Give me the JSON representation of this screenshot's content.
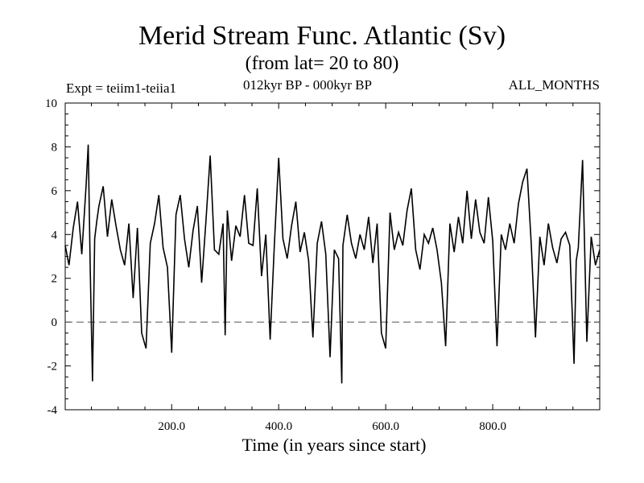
{
  "chart_data": {
    "type": "line",
    "title": "Merid Stream Func. Atlantic (Sv)",
    "subtitle": "(from lat= 20 to 80)",
    "annotations": {
      "left": "Expt = teiim1-teiia1",
      "center": "012kyr BP - 000kyr BP",
      "right": "ALL_MONTHS"
    },
    "xlabel": "Time (in years since start)",
    "ylabel": "",
    "xlim": [
      1,
      1000
    ],
    "ylim": [
      -4,
      10
    ],
    "xticks": [
      200,
      400,
      600,
      800
    ],
    "xtick_labels": [
      "200.0",
      "400.0",
      "600.0",
      "800.0"
    ],
    "yticks": [
      -4,
      -2,
      0,
      2,
      4,
      6,
      8,
      10
    ],
    "ytick_labels": [
      "-4",
      "-2",
      "0",
      "2",
      "4",
      "6",
      "8",
      "10"
    ],
    "reference_line": {
      "y": 0,
      "style": "dashed"
    },
    "series": [
      {
        "x": [
          1,
          8,
          16,
          24,
          32,
          40,
          44,
          48,
          52,
          56,
          60,
          64,
          72,
          80,
          88,
          96,
          104,
          112,
          120,
          128,
          136,
          144,
          152,
          160,
          168,
          176,
          184,
          192,
          200,
          208,
          216,
          224,
          232,
          240,
          248,
          256,
          264,
          272,
          280,
          288,
          296,
          300,
          304,
          312,
          320,
          328,
          336,
          344,
          352,
          360,
          368,
          376,
          384,
          392,
          400,
          408,
          416,
          424,
          432,
          440,
          448,
          456,
          464,
          472,
          480,
          488,
          496,
          504,
          512,
          518,
          520,
          528,
          536,
          544,
          552,
          560,
          568,
          576,
          584,
          592,
          600,
          608,
          616,
          624,
          632,
          640,
          648,
          656,
          664,
          672,
          680,
          688,
          696,
          704,
          712,
          720,
          728,
          736,
          744,
          752,
          760,
          768,
          776,
          784,
          792,
          800,
          808,
          816,
          824,
          832,
          840,
          848,
          856,
          864,
          872,
          880,
          888,
          896,
          904,
          912,
          920,
          928,
          936,
          944,
          952,
          956,
          960,
          968,
          976,
          984,
          992,
          1000
        ],
        "y": [
          3.5,
          2.6,
          4.3,
          5.5,
          3.1,
          6.2,
          8.1,
          2.2,
          -2.7,
          3.8,
          4.6,
          5.3,
          6.2,
          3.9,
          5.6,
          4.4,
          3.3,
          2.6,
          4.5,
          1.1,
          4.3,
          -0.5,
          -1.2,
          3.6,
          4.5,
          5.8,
          3.4,
          2.5,
          -1.4,
          4.9,
          5.8,
          3.8,
          2.5,
          4.2,
          5.3,
          1.8,
          4.6,
          7.6,
          3.3,
          3.1,
          4.5,
          -0.6,
          5.1,
          2.8,
          4.4,
          3.9,
          5.8,
          3.6,
          3.5,
          6.1,
          2.1,
          4.0,
          -0.8,
          3.6,
          7.5,
          3.8,
          2.9,
          4.4,
          5.5,
          3.2,
          4.1,
          2.8,
          -0.7,
          3.6,
          4.6,
          3.1,
          -1.6,
          3.3,
          2.9,
          -2.8,
          3.5,
          4.9,
          3.6,
          2.9,
          4.0,
          3.3,
          4.8,
          2.7,
          4.5,
          -0.5,
          -1.2,
          5.0,
          3.3,
          4.1,
          3.5,
          5.1,
          6.1,
          3.3,
          2.4,
          4.0,
          3.6,
          4.3,
          3.3,
          1.8,
          -1.1,
          4.5,
          3.2,
          4.8,
          3.6,
          6.0,
          3.8,
          5.6,
          4.1,
          3.6,
          5.7,
          3.7,
          -1.1,
          4.0,
          3.3,
          4.5,
          3.6,
          5.4,
          6.4,
          7.0,
          3.6,
          -0.7,
          3.9,
          2.6,
          4.5,
          3.4,
          2.7,
          3.8,
          4.1,
          3.5,
          -1.9,
          2.8,
          3.4,
          7.4,
          -0.9,
          3.9,
          2.6,
          3.3
        ]
      }
    ]
  }
}
